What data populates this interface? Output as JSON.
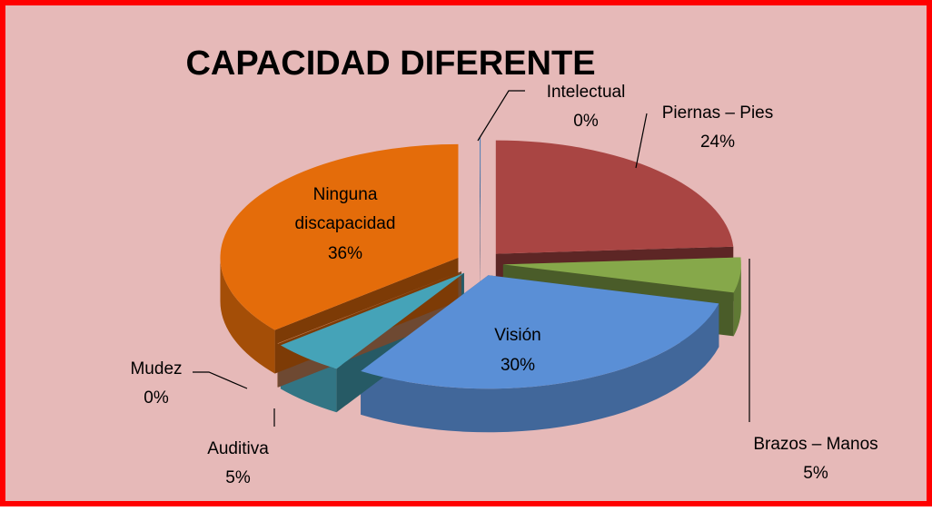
{
  "chart_data": {
    "type": "pie3d",
    "title": "CAPACIDAD DIFERENTE",
    "categories": [
      "Intelectual",
      "Piernas – Pies",
      "Brazos – Manos",
      "Visión",
      "Auditiva",
      "Mudez",
      "Ninguna discapacidad"
    ],
    "values": [
      0,
      24,
      5,
      30,
      5,
      0,
      36
    ],
    "value_labels": [
      "0%",
      "24%",
      "5%",
      "30%",
      "5%",
      "0%",
      "36%"
    ],
    "colors": [
      "#4f81bd",
      "#a94543",
      "#86a84a",
      "#5a8fd6",
      "#45a3b8",
      "#c8845a",
      "#e46c0a"
    ]
  }
}
